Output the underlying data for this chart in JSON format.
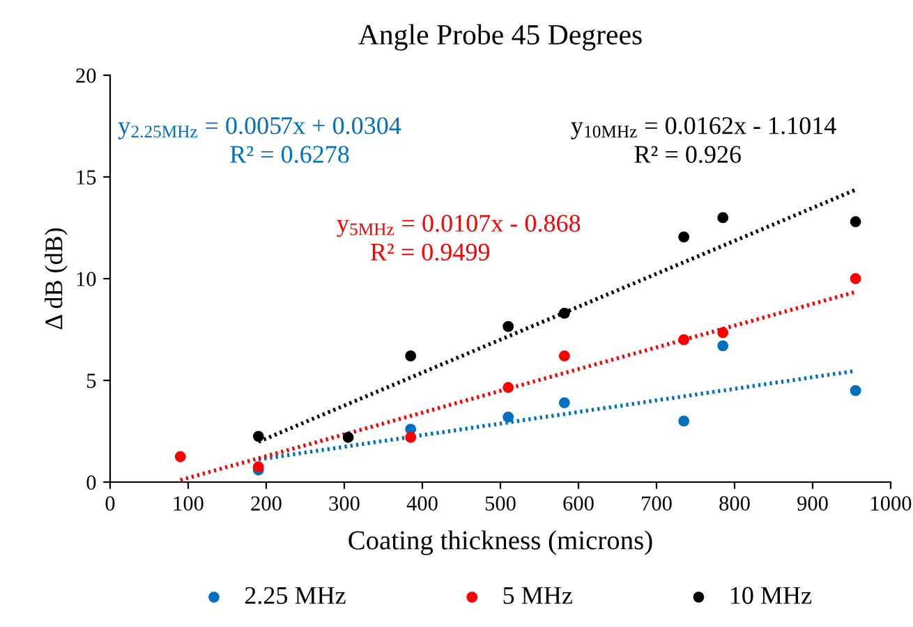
{
  "chart_data": {
    "type": "scatter",
    "title": "Angle Probe 45 Degrees",
    "xlabel": "Coating thickness (microns)",
    "ylabel": "Δ dB (dB)",
    "xlim": [
      0,
      1000
    ],
    "xticks": [
      0,
      100,
      200,
      300,
      400,
      500,
      600,
      700,
      800,
      900,
      1000
    ],
    "ylim": [
      0,
      20
    ],
    "yticks": [
      0,
      5,
      10,
      15,
      20
    ],
    "grid": false,
    "legend": "bottom",
    "marker": "circle",
    "series": [
      {
        "name": "2.25 MHz",
        "color": "#0070c0",
        "x": [
          190,
          385,
          510,
          582,
          735,
          785,
          955
        ],
        "values": [
          0.6,
          2.6,
          3.2,
          3.9,
          3.0,
          6.7,
          4.5
        ]
      },
      {
        "name": "5 MHz",
        "color": "#ff0000",
        "x": [
          90,
          190,
          385,
          510,
          582,
          735,
          785,
          955
        ],
        "values": [
          1.25,
          0.75,
          2.2,
          4.65,
          6.2,
          7.0,
          7.35,
          10.0
        ]
      },
      {
        "name": "10 MHz",
        "color": "#000000",
        "x": [
          190,
          305,
          385,
          510,
          582,
          735,
          785,
          955
        ],
        "values": [
          2.25,
          2.2,
          6.2,
          7.65,
          8.3,
          12.05,
          13.0,
          12.8
        ]
      },
      {
        "type": "line",
        "marker": "none",
        "color": "#0070c0",
        "line_style": "dotted",
        "x": [
          190,
          955
        ],
        "values": [
          1.11,
          5.47
        ]
      },
      {
        "type": "line",
        "marker": "none",
        "color": "#ff0000",
        "line_style": "dotted",
        "x": [
          90,
          955
        ],
        "values": [
          0.1,
          9.35
        ]
      },
      {
        "type": "line",
        "marker": "none",
        "color": "#000000",
        "line_style": "dotted",
        "x": [
          190,
          955
        ],
        "values": [
          1.98,
          14.37
        ]
      }
    ],
    "annotations": [
      "y$_{2.25MHz}$ = 0.0057x + 0.0304",
      "R² = 0.6278",
      "y$_{5MHz}$ = 0.0107x - 0.868",
      "R² = 0.9499",
      "y$_{10MHz}$ = 0.0162x - 1.1014",
      "R² = 0.926"
    ]
  }
}
